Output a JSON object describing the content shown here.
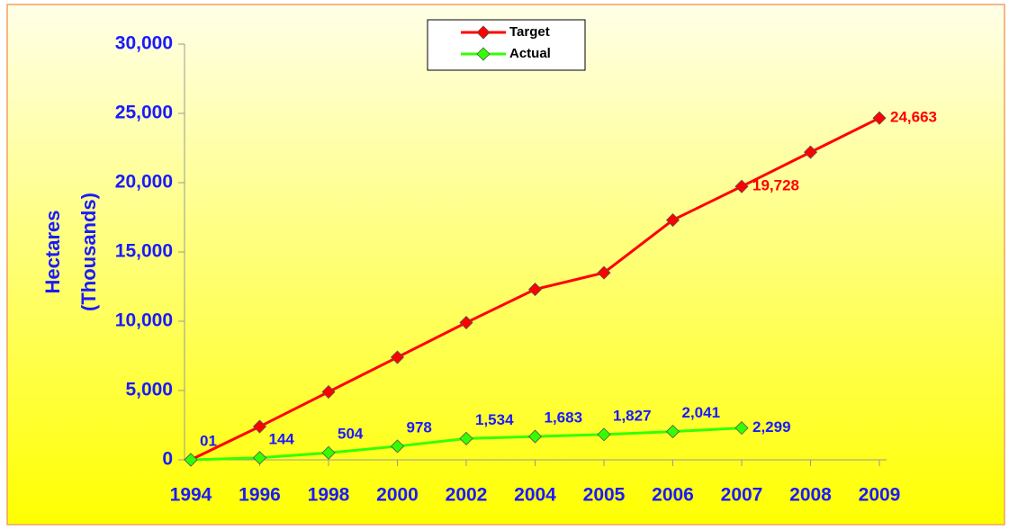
{
  "chart_data": {
    "type": "line",
    "ylabel": [
      "Hectares",
      "(Thousands)"
    ],
    "categories": [
      "1994",
      "1996",
      "1998",
      "2000",
      "2002",
      "2004",
      "2005",
      "2006",
      "2007",
      "2008",
      "2009"
    ],
    "series": [
      {
        "name": "Target",
        "color": "#ff0000",
        "values": [
          0,
          2400,
          4900,
          7400,
          9900,
          12300,
          13500,
          17300,
          19728,
          22200,
          24663
        ],
        "value_labels": [
          null,
          null,
          null,
          null,
          null,
          null,
          null,
          null,
          "19,728",
          null,
          "24,663"
        ]
      },
      {
        "name": "Actual",
        "color": "#33ff00",
        "values": [
          1,
          144,
          504,
          978,
          1534,
          1683,
          1827,
          2041,
          2299,
          null,
          null
        ],
        "value_labels": [
          "01",
          "144",
          "504",
          "978",
          "1,534",
          "1,683",
          "1,827",
          "2,041",
          "2,299",
          null,
          null
        ]
      }
    ],
    "ylim": [
      0,
      30000
    ],
    "yticks": [
      0,
      {
        "value": 5000,
        "label": "5,000"
      },
      {
        "value": 10000,
        "label": "10,000"
      },
      {
        "value": 15000,
        "label": "15,000"
      },
      {
        "value": 20000,
        "label": "20,000"
      },
      {
        "value": 25000,
        "label": "25,000"
      },
      {
        "value": 30000,
        "label": "30,000"
      }
    ],
    "legend": "top"
  }
}
